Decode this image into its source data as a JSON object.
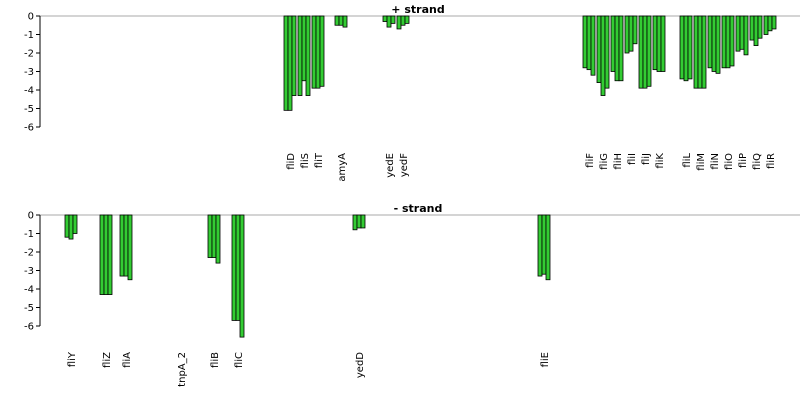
{
  "chart_data": [
    {
      "type": "bar",
      "title": "+ strand",
      "categories": [
        null,
        null,
        null,
        null,
        null,
        null,
        "fliD",
        "fliS",
        "fliT",
        "amyA",
        null,
        "yedE",
        "yedF",
        null,
        "fliF",
        "fliG",
        "fliH",
        "fliI",
        "fliJ",
        "fliK",
        "fliL",
        "fliM",
        "fliN",
        "fliO",
        "fliP",
        "fliQ",
        "fliR"
      ],
      "values": [
        [
          0,
          0,
          0
        ],
        [
          0,
          0,
          0
        ],
        [
          0,
          0,
          0
        ],
        [
          0,
          0,
          0
        ],
        [
          0,
          0,
          0
        ],
        [
          0,
          0,
          0
        ],
        [
          -5.1,
          -5.1,
          -4.3
        ],
        [
          -4.3,
          -3.5,
          -4.3
        ],
        [
          -3.9,
          -3.9,
          -3.8
        ],
        [
          -0.5,
          -0.5,
          -0.6
        ],
        [
          0,
          0,
          0
        ],
        [
          -0.3,
          -0.6,
          -0.4
        ],
        [
          -0.7,
          -0.5,
          -0.4
        ],
        [
          0,
          0,
          0
        ],
        [
          -2.8,
          -2.9,
          -3.2
        ],
        [
          -3.6,
          -4.3,
          -3.9
        ],
        [
          -3.0,
          -3.5,
          -3.5
        ],
        [
          -2.0,
          -1.9,
          -1.5
        ],
        [
          -3.9,
          -3.9,
          -3.8
        ],
        [
          -2.9,
          -3.0,
          -3.0
        ],
        [
          -3.4,
          -3.5,
          -3.4
        ],
        [
          -3.9,
          -3.9,
          -3.9
        ],
        [
          -2.8,
          -3.0,
          -3.1
        ],
        [
          -2.8,
          -2.8,
          -2.7
        ],
        [
          -1.9,
          -1.8,
          -2.1
        ],
        [
          -1.3,
          -1.6,
          -1.2
        ],
        [
          -1.0,
          -0.8,
          -0.7
        ]
      ],
      "color": "#33cc33",
      "ylim": [
        -6,
        0
      ],
      "yticks": [
        0,
        -1,
        -2,
        -3,
        -4,
        -5,
        -6
      ]
    },
    {
      "type": "bar",
      "title": "- strand",
      "categories": [
        "fliY",
        "fliZ",
        "fliA",
        "tnpA_2",
        "fliB",
        "fliC",
        null,
        null,
        null,
        null,
        "yedD",
        null,
        null,
        "fliE",
        null,
        null,
        null,
        null,
        null,
        null,
        null,
        null,
        null,
        null,
        null,
        null,
        null
      ],
      "values": [
        [
          -1.2,
          -1.3,
          -1.0
        ],
        [
          -4.3,
          -4.3,
          -4.3
        ],
        [
          -3.3,
          -3.3,
          -3.5
        ],
        [
          0,
          0,
          0
        ],
        [
          -2.3,
          -2.3,
          -2.6
        ],
        [
          -5.7,
          -5.7,
          -6.6
        ],
        [
          0,
          0,
          0
        ],
        [
          0,
          0,
          0
        ],
        [
          0,
          0,
          0
        ],
        [
          0,
          0,
          0
        ],
        [
          -0.8,
          -0.7,
          -0.7
        ],
        [
          0,
          0,
          0
        ],
        [
          0,
          0,
          0
        ],
        [
          -3.3,
          -3.2,
          -3.5
        ],
        [
          0,
          0,
          0
        ],
        [
          0,
          0,
          0
        ],
        [
          0,
          0,
          0
        ],
        [
          0,
          0,
          0
        ],
        [
          0,
          0,
          0
        ],
        [
          0,
          0,
          0
        ],
        [
          0,
          0,
          0
        ],
        [
          0,
          0,
          0
        ],
        [
          0,
          0,
          0
        ],
        [
          0,
          0,
          0
        ],
        [
          0,
          0,
          0
        ],
        [
          0,
          0,
          0
        ],
        [
          0,
          0,
          0
        ]
      ],
      "color": "#33cc33",
      "ylim": [
        -6,
        0
      ],
      "yticks": [
        0,
        -1,
        -2,
        -3,
        -4,
        -5,
        -6
      ]
    }
  ]
}
